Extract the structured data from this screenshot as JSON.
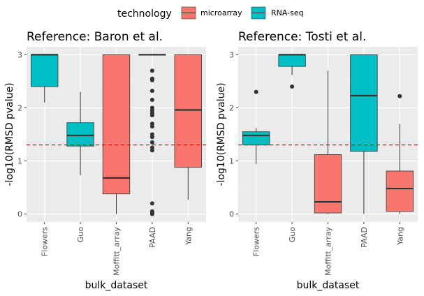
{
  "legend": {
    "title": "technology",
    "items": [
      {
        "label": "microarray",
        "color": "#F8766D"
      },
      {
        "label": "RNA-seq",
        "color": "#00BFC4"
      }
    ]
  },
  "threshold": 1.30103,
  "chart_data": [
    {
      "type": "boxplot",
      "title": "Reference: Baron et al.",
      "xlabel": "bulk_dataset",
      "ylabel": "-log10(RMSD pvalue)",
      "ylim": [
        -0.15,
        3.15
      ],
      "yticks": [
        "0",
        "1",
        "2",
        "3"
      ],
      "categories": [
        "Flowers",
        "Guo",
        "Moffitt_array",
        "PAAD",
        "Yang"
      ],
      "boxes": [
        {
          "category": "Flowers",
          "technology": "RNA-seq",
          "lower": 2.1,
          "q1": 2.4,
          "median": 3.0,
          "q3": 3.0,
          "upper": 3.0,
          "outliers": []
        },
        {
          "category": "Guo",
          "technology": "RNA-seq",
          "lower": 0.73,
          "q1": 1.28,
          "median": 1.48,
          "q3": 1.72,
          "upper": 2.3,
          "outliers": []
        },
        {
          "category": "Moffitt_array",
          "technology": "microarray",
          "lower": 0.0,
          "q1": 0.38,
          "median": 0.68,
          "q3": 3.0,
          "upper": 3.0,
          "outliers": []
        },
        {
          "category": "PAAD",
          "technology": "microarray",
          "lower": 3.0,
          "q1": 3.0,
          "median": 3.0,
          "q3": 3.0,
          "upper": 3.0,
          "outliers": [
            2.7,
            2.55,
            2.52,
            2.32,
            2.15,
            2.0,
            1.95,
            1.9,
            1.86,
            1.7,
            1.65,
            1.5,
            1.45,
            1.35,
            1.25,
            1.2,
            0.2,
            0.05,
            0.02,
            0.0
          ]
        },
        {
          "category": "Yang",
          "technology": "microarray",
          "lower": 0.27,
          "q1": 0.88,
          "median": 1.96,
          "q3": 3.0,
          "upper": 3.0,
          "outliers": []
        }
      ]
    },
    {
      "type": "boxplot",
      "title": "Reference: Tosti et al.",
      "xlabel": "bulk_dataset",
      "ylabel": "-log10(RMSD pvalue)",
      "ylim": [
        -0.15,
        3.15
      ],
      "yticks": [
        "0",
        "1",
        "2",
        "3"
      ],
      "categories": [
        "Flowers",
        "Guo",
        "Moffitt_array",
        "PAAD",
        "Yang"
      ],
      "boxes": [
        {
          "category": "Flowers",
          "technology": "RNA-seq",
          "lower": 0.94,
          "q1": 1.3,
          "median": 1.48,
          "q3": 1.55,
          "upper": 1.62,
          "outliers": [
            2.3
          ]
        },
        {
          "category": "Guo",
          "technology": "RNA-seq",
          "lower": 2.62,
          "q1": 2.78,
          "median": 3.0,
          "q3": 3.0,
          "upper": 3.0,
          "outliers": [
            2.4
          ]
        },
        {
          "category": "Moffitt_array",
          "technology": "microarray",
          "lower": 0.0,
          "q1": 0.02,
          "median": 0.23,
          "q3": 1.12,
          "upper": 2.7,
          "outliers": []
        },
        {
          "category": "PAAD",
          "technology": "RNA-seq",
          "lower": 0.0,
          "q1": 1.18,
          "median": 2.23,
          "q3": 3.0,
          "upper": 3.0,
          "outliers": []
        },
        {
          "category": "Yang",
          "technology": "microarray",
          "lower": 0.0,
          "q1": 0.05,
          "median": 0.48,
          "q3": 0.81,
          "upper": 1.7,
          "outliers": [
            2.22
          ]
        }
      ]
    }
  ]
}
